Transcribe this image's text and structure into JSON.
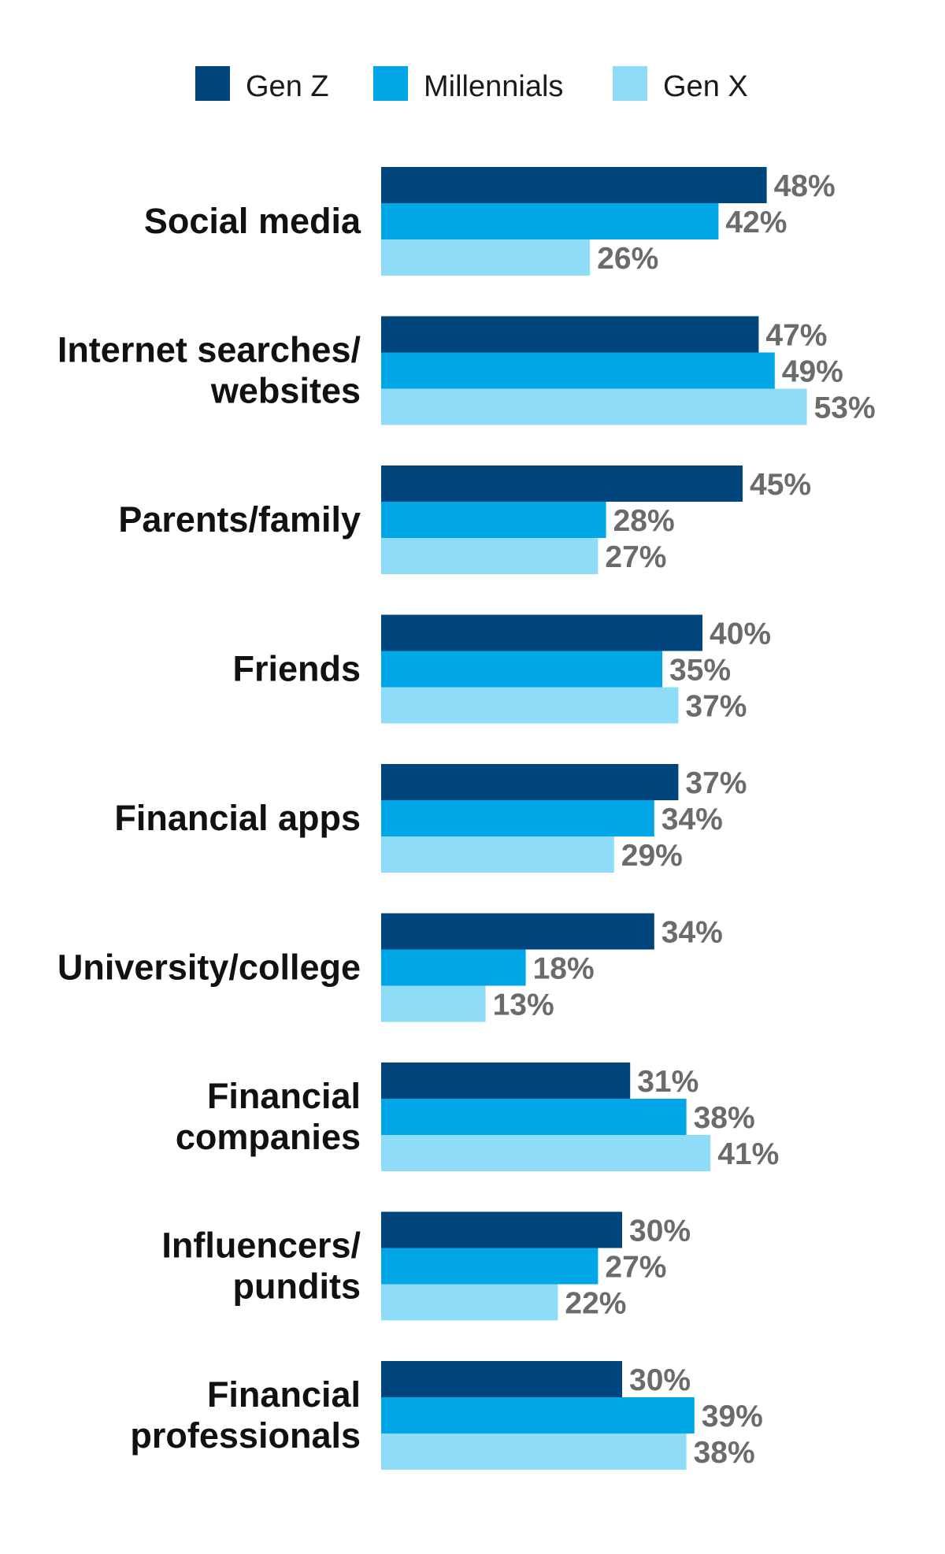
{
  "colors": {
    "gen_z": "#00457c",
    "millennials": "#00a6e6",
    "gen_x": "#8fdcf8"
  },
  "chart_data": {
    "type": "bar",
    "orientation": "horizontal",
    "title": "",
    "xlabel": "",
    "ylabel": "",
    "xlim": [
      0,
      60
    ],
    "grid": false,
    "legend_position": "top",
    "value_suffix": "%",
    "categories": [
      [
        "Social media"
      ],
      [
        "Internet searches/",
        "websites"
      ],
      [
        "Parents/family"
      ],
      [
        "Friends"
      ],
      [
        "Financial apps"
      ],
      [
        "University/college"
      ],
      [
        "Financial",
        "companies"
      ],
      [
        "Influencers/",
        "pundits"
      ],
      [
        "Financial",
        "professionals"
      ]
    ],
    "series": [
      {
        "name": "Gen Z",
        "color": "#00457c",
        "values": [
          48,
          47,
          45,
          40,
          37,
          34,
          31,
          30,
          30
        ]
      },
      {
        "name": "Millennials",
        "color": "#00a6e6",
        "values": [
          42,
          49,
          28,
          35,
          34,
          18,
          38,
          27,
          39
        ]
      },
      {
        "name": "Gen X",
        "color": "#8fdcf8",
        "values": [
          26,
          53,
          27,
          37,
          29,
          13,
          41,
          22,
          38
        ]
      }
    ]
  }
}
